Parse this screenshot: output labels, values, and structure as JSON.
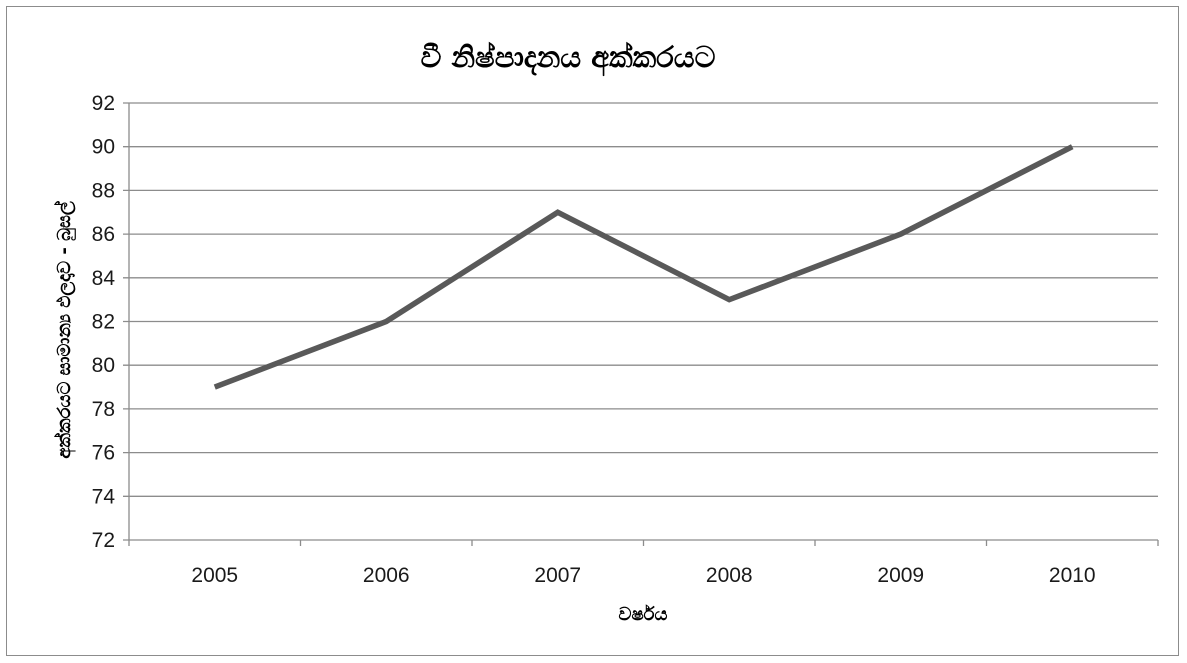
{
  "chart_data": {
    "type": "line",
    "title": "වී නිෂ්පාදනය  අක්කරයට",
    "xlabel": "වර්ෂය",
    "ylabel": "අක්කරයට  සාමාන්‍ය ඵලදාව - බුසල්",
    "categories": [
      "2005",
      "2006",
      "2007",
      "2008",
      "2009",
      "2010"
    ],
    "series": [
      {
        "values": [
          79,
          82,
          87,
          83,
          86,
          90
        ]
      }
    ],
    "ylim": [
      72,
      92
    ],
    "yticks": [
      72,
      74,
      76,
      78,
      80,
      82,
      84,
      86,
      88,
      90,
      92
    ],
    "grid": true,
    "legend": "none",
    "colors": {
      "line": "#595959",
      "grid": "#8c8c8c",
      "axis": "#8c8c8c"
    }
  }
}
